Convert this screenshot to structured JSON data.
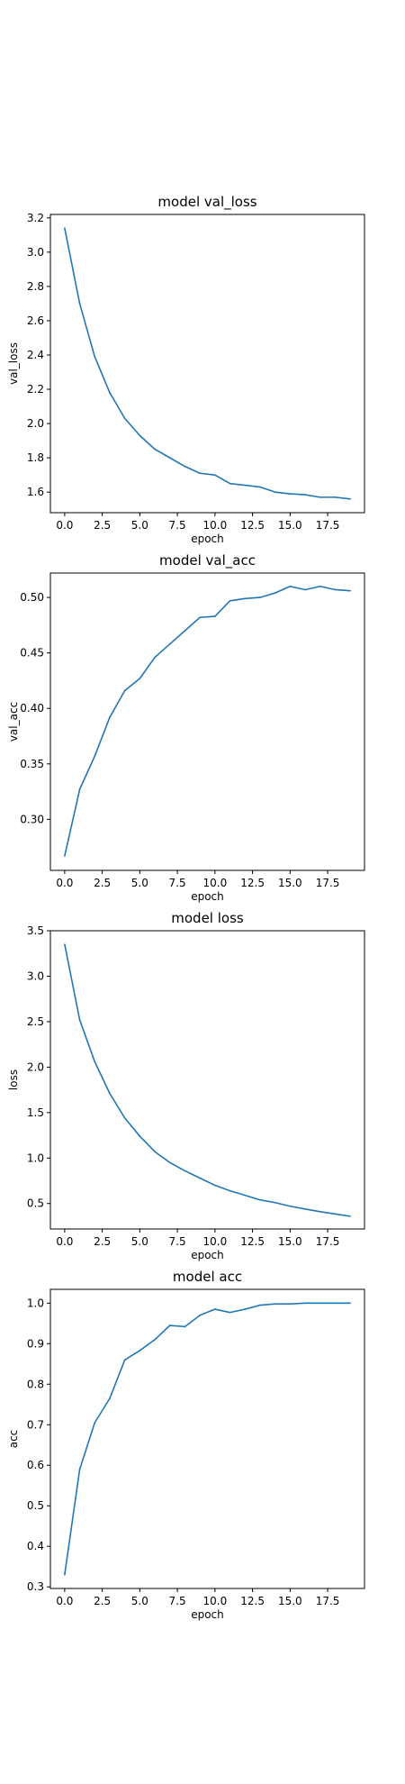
{
  "chart_data": [
    {
      "type": "line",
      "title": "model val_loss",
      "xlabel": "epoch",
      "ylabel": "val_loss",
      "xlim": [
        -0.95,
        19.95
      ],
      "ylim": [
        1.48,
        3.22
      ],
      "xticks": [
        0,
        2.5,
        5,
        7.5,
        10,
        12.5,
        15,
        17.5
      ],
      "xtick_labels": [
        "0.0",
        "2.5",
        "5.0",
        "7.5",
        "10.0",
        "12.5",
        "15.0",
        "17.5"
      ],
      "yticks": [
        1.6,
        1.8,
        2.0,
        2.2,
        2.4,
        2.6,
        2.8,
        3.0,
        3.2
      ],
      "ytick_labels": [
        "1.6",
        "1.8",
        "2.0",
        "2.2",
        "2.4",
        "2.6",
        "2.8",
        "3.0",
        "3.2"
      ],
      "grid": false,
      "color": "#1f77b4",
      "series": [
        {
          "x": [
            0,
            1,
            2,
            3,
            4,
            5,
            6,
            7,
            8,
            9,
            10,
            11,
            12,
            13,
            14,
            15,
            16,
            17,
            18,
            19
          ],
          "values": [
            3.14,
            2.7,
            2.39,
            2.18,
            2.03,
            1.93,
            1.85,
            1.8,
            1.75,
            1.71,
            1.7,
            1.65,
            1.64,
            1.63,
            1.6,
            1.59,
            1.585,
            1.57,
            1.57,
            1.56
          ]
        }
      ]
    },
    {
      "type": "line",
      "title": "model val_acc",
      "xlabel": "epoch",
      "ylabel": "val_acc",
      "xlim": [
        -0.95,
        19.95
      ],
      "ylim": [
        0.254,
        0.522
      ],
      "xticks": [
        0,
        2.5,
        5,
        7.5,
        10,
        12.5,
        15,
        17.5
      ],
      "xtick_labels": [
        "0.0",
        "2.5",
        "5.0",
        "7.5",
        "10.0",
        "12.5",
        "15.0",
        "17.5"
      ],
      "yticks": [
        0.3,
        0.35,
        0.4,
        0.45,
        0.5
      ],
      "ytick_labels": [
        "0.30",
        "0.35",
        "0.40",
        "0.45",
        "0.50"
      ],
      "grid": false,
      "color": "#1f77b4",
      "series": [
        {
          "x": [
            0,
            1,
            2,
            3,
            4,
            5,
            6,
            7,
            8,
            9,
            10,
            11,
            12,
            13,
            14,
            15,
            16,
            17,
            18,
            19
          ],
          "values": [
            0.267,
            0.327,
            0.357,
            0.392,
            0.416,
            0.427,
            0.446,
            0.458,
            0.47,
            0.482,
            0.483,
            0.497,
            0.499,
            0.5,
            0.504,
            0.51,
            0.507,
            0.51,
            0.507,
            0.506
          ]
        }
      ]
    },
    {
      "type": "line",
      "title": "model loss",
      "xlabel": "epoch",
      "ylabel": "loss",
      "xlim": [
        -0.95,
        19.95
      ],
      "ylim": [
        0.22,
        3.5
      ],
      "xticks": [
        0,
        2.5,
        5,
        7.5,
        10,
        12.5,
        15,
        17.5
      ],
      "xtick_labels": [
        "0.0",
        "2.5",
        "5.0",
        "7.5",
        "10.0",
        "12.5",
        "15.0",
        "17.5"
      ],
      "yticks": [
        0.5,
        1.0,
        1.5,
        2.0,
        2.5,
        3.0,
        3.5
      ],
      "ytick_labels": [
        "0.5",
        "1.0",
        "1.5",
        "2.0",
        "2.5",
        "3.0",
        "3.5"
      ],
      "grid": false,
      "color": "#1f77b4",
      "series": [
        {
          "x": [
            0,
            1,
            2,
            3,
            4,
            5,
            6,
            7,
            8,
            9,
            10,
            11,
            12,
            13,
            14,
            15,
            16,
            17,
            18,
            19
          ],
          "values": [
            3.35,
            2.52,
            2.06,
            1.71,
            1.44,
            1.24,
            1.07,
            0.95,
            0.86,
            0.78,
            0.7,
            0.64,
            0.59,
            0.54,
            0.51,
            0.47,
            0.44,
            0.41,
            0.385,
            0.36
          ]
        }
      ]
    },
    {
      "type": "line",
      "title": "model acc",
      "xlabel": "epoch",
      "ylabel": "acc",
      "xlim": [
        -0.95,
        19.95
      ],
      "ylim": [
        0.296,
        1.034
      ],
      "xticks": [
        0,
        2.5,
        5,
        7.5,
        10,
        12.5,
        15,
        17.5
      ],
      "xtick_labels": [
        "0.0",
        "2.5",
        "5.0",
        "7.5",
        "10.0",
        "12.5",
        "15.0",
        "17.5"
      ],
      "yticks": [
        0.3,
        0.4,
        0.5,
        0.6,
        0.7,
        0.8,
        0.9,
        1.0
      ],
      "ytick_labels": [
        "0.3",
        "0.4",
        "0.5",
        "0.6",
        "0.7",
        "0.8",
        "0.9",
        "1.0"
      ],
      "grid": false,
      "color": "#1f77b4",
      "series": [
        {
          "x": [
            0,
            1,
            2,
            3,
            4,
            5,
            6,
            7,
            8,
            9,
            10,
            11,
            12,
            13,
            14,
            15,
            16,
            17,
            18,
            19
          ],
          "values": [
            0.33,
            0.59,
            0.705,
            0.765,
            0.86,
            0.883,
            0.91,
            0.945,
            0.942,
            0.97,
            0.985,
            0.977,
            0.985,
            0.995,
            0.998,
            0.998,
            1.0,
            1.0,
            1.0,
            1.0
          ]
        }
      ]
    }
  ]
}
